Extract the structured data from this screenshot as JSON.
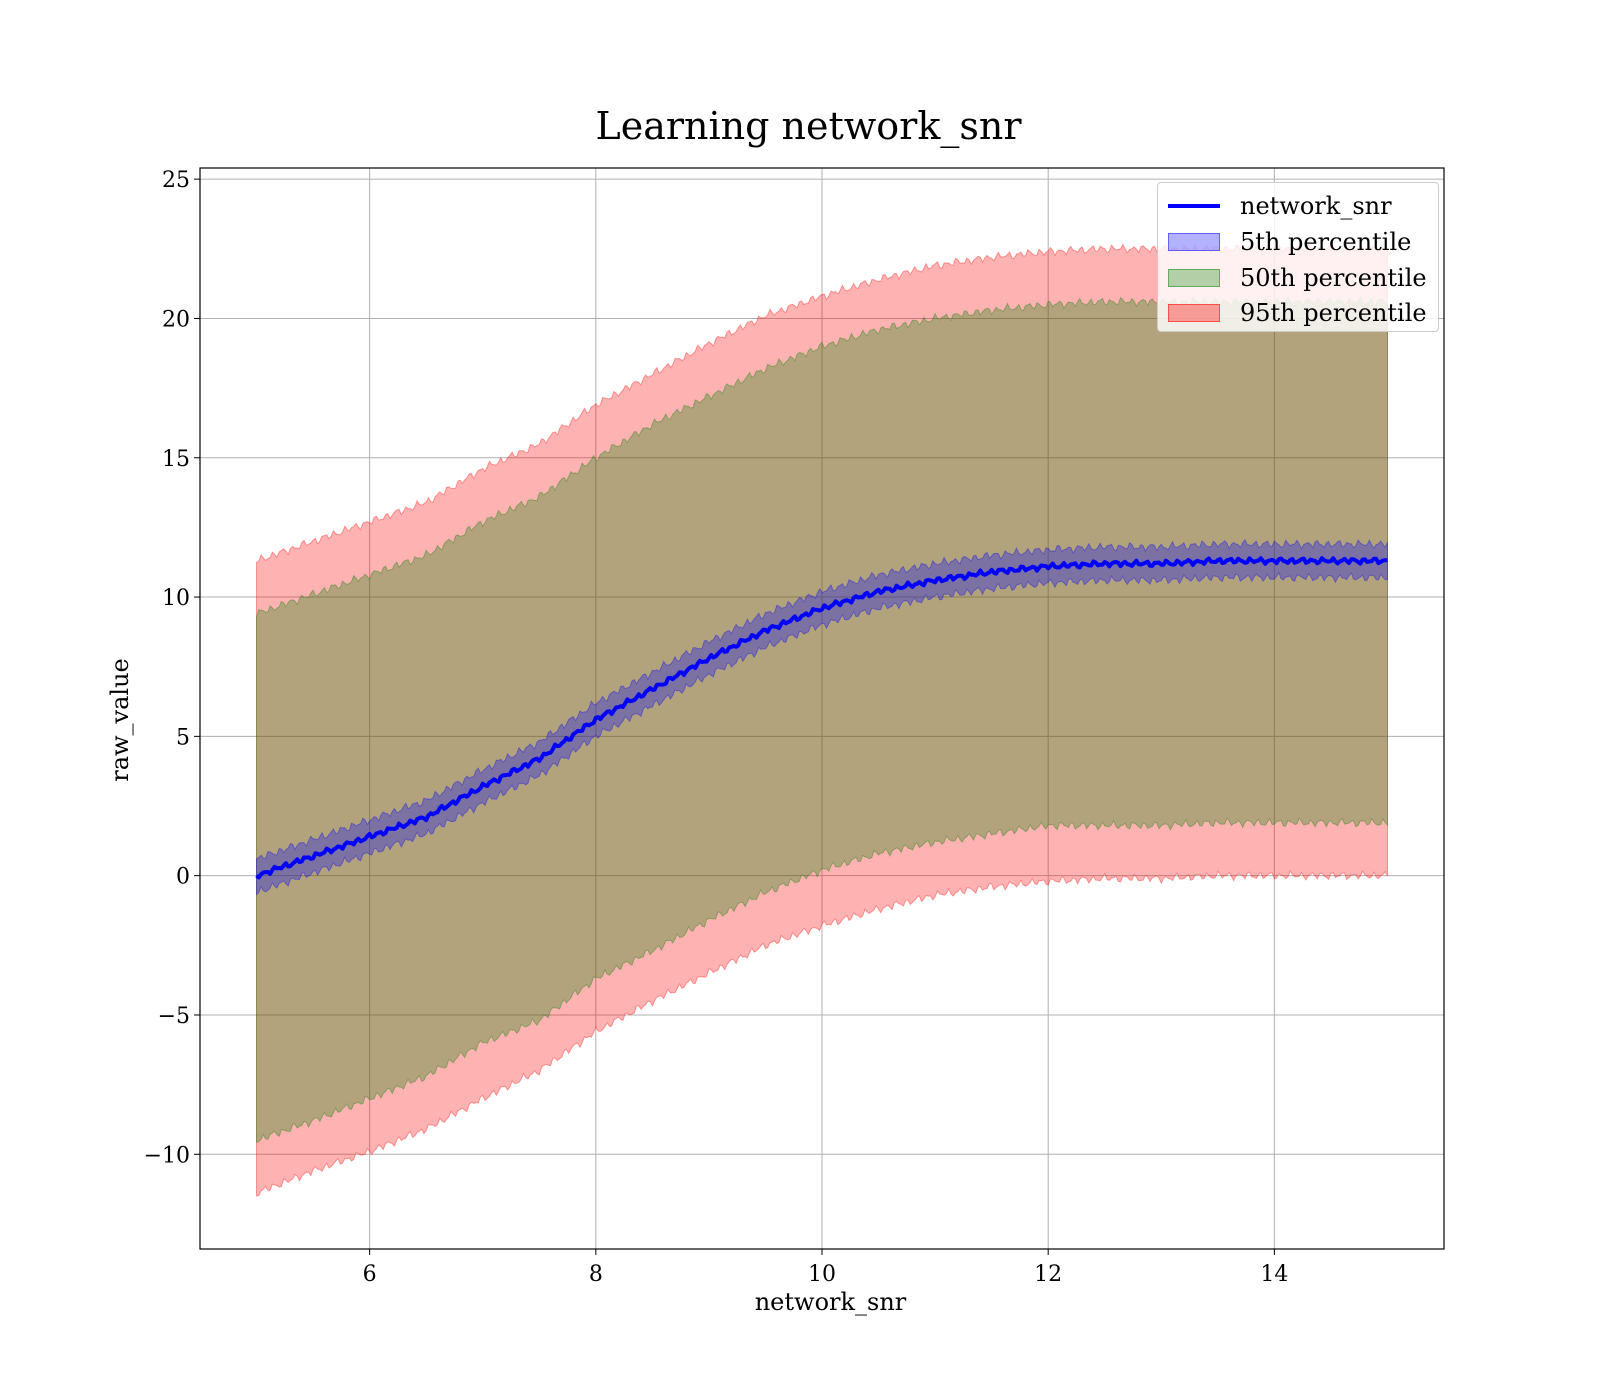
{
  "chart_data": {
    "type": "area",
    "title": "Learning network_snr",
    "xlabel": "network_snr",
    "ylabel": "raw_value",
    "xlim": [
      4.5,
      15.5
    ],
    "ylim": [
      -13.4,
      25.4
    ],
    "xticks": [
      6,
      8,
      10,
      12,
      14
    ],
    "yticks": [
      -10,
      -5,
      0,
      5,
      10,
      15,
      20,
      25
    ],
    "ytick_labels": [
      "−10",
      "−5",
      "0",
      "5",
      "10",
      "15",
      "20",
      "25"
    ],
    "grid": true,
    "legend_position": "top-right",
    "x": [
      5.0,
      5.5,
      6.0,
      6.5,
      7.0,
      7.5,
      8.0,
      8.5,
      9.0,
      9.5,
      10.0,
      10.5,
      11.0,
      11.5,
      12.0,
      12.5,
      13.0,
      13.5,
      14.0,
      14.5,
      15.0
    ],
    "series": [
      {
        "name": "network_snr",
        "kind": "line",
        "color": "#0000ff",
        "values": [
          0.0,
          0.7,
          1.4,
          2.1,
          3.2,
          4.2,
          5.6,
          6.7,
          7.8,
          8.8,
          9.6,
          10.2,
          10.6,
          10.9,
          11.1,
          11.2,
          11.2,
          11.3,
          11.3,
          11.3,
          11.3
        ]
      },
      {
        "name": "5th percentile",
        "kind": "band",
        "color": "#0000ff",
        "opacity": 0.3,
        "lower": [
          -0.6,
          0.1,
          0.8,
          1.5,
          2.6,
          3.6,
          5.0,
          6.1,
          7.2,
          8.2,
          9.0,
          9.6,
          10.0,
          10.3,
          10.5,
          10.6,
          10.6,
          10.7,
          10.7,
          10.7,
          10.7
        ],
        "upper": [
          0.6,
          1.3,
          2.0,
          2.7,
          3.8,
          4.8,
          6.2,
          7.3,
          8.4,
          9.4,
          10.2,
          10.8,
          11.2,
          11.5,
          11.7,
          11.8,
          11.8,
          11.9,
          11.9,
          11.9,
          11.9
        ]
      },
      {
        "name": "50th percentile",
        "kind": "band",
        "color": "#008000",
        "opacity": 0.3,
        "lower": [
          -9.5,
          -8.8,
          -8.0,
          -7.2,
          -6.0,
          -5.2,
          -3.7,
          -2.7,
          -1.6,
          -0.6,
          0.2,
          0.8,
          1.2,
          1.5,
          1.8,
          1.8,
          1.8,
          1.9,
          1.9,
          1.9,
          1.9
        ],
        "upper": [
          9.4,
          10.1,
          10.8,
          11.5,
          12.7,
          13.6,
          15.0,
          16.2,
          17.2,
          18.2,
          19.0,
          19.6,
          20.0,
          20.3,
          20.5,
          20.6,
          20.6,
          20.6,
          20.6,
          20.6,
          20.6
        ]
      },
      {
        "name": "95th percentile",
        "kind": "band",
        "color": "#ff0000",
        "opacity": 0.3,
        "lower": [
          -11.4,
          -10.6,
          -9.9,
          -9.1,
          -8.0,
          -7.0,
          -5.6,
          -4.5,
          -3.5,
          -2.5,
          -1.8,
          -1.2,
          -0.7,
          -0.4,
          -0.2,
          -0.1,
          -0.1,
          0.0,
          0.0,
          0.0,
          0.0
        ],
        "upper": [
          11.3,
          12.0,
          12.7,
          13.4,
          14.6,
          15.5,
          16.9,
          18.0,
          19.1,
          20.1,
          20.8,
          21.4,
          21.9,
          22.2,
          22.4,
          22.5,
          22.5,
          22.5,
          22.5,
          22.5,
          22.5
        ]
      }
    ]
  },
  "legend": {
    "items": [
      {
        "label": "network_snr",
        "color": "#0000ff",
        "kind": "line"
      },
      {
        "label": "5th percentile",
        "color": "#0000ff",
        "kind": "band"
      },
      {
        "label": "50th percentile",
        "color": "#008000",
        "kind": "band"
      },
      {
        "label": "95th percentile",
        "color": "#ff0000",
        "kind": "band"
      }
    ]
  }
}
